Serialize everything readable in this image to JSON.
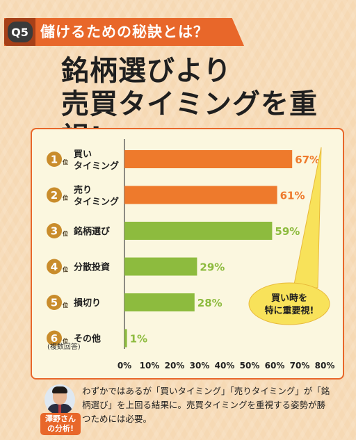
{
  "question": {
    "badge": "Q5",
    "text": "儲けるための秘訣とは？"
  },
  "headline": {
    "line1": "銘柄選びより",
    "line2": "売買タイミングを重視!"
  },
  "colors": {
    "accent": "#e8672a",
    "highlight_bar": "#ee7a2c",
    "normal_bar": "#8dbb3e",
    "rank_circle": "#c98c2b",
    "bubble": "#f8e25a"
  },
  "chart_data": {
    "type": "bar",
    "orientation": "horizontal",
    "rank_suffix": "位",
    "categories": [
      {
        "rank": "1",
        "label_lines": [
          "買い",
          "タイミング"
        ],
        "value": 67,
        "value_label": "67%",
        "highlight": true
      },
      {
        "rank": "2",
        "label_lines": [
          "売り",
          "タイミング"
        ],
        "value": 61,
        "value_label": "61%",
        "highlight": true
      },
      {
        "rank": "3",
        "label_lines": [
          "銘柄選び"
        ],
        "value": 59,
        "value_label": "59%",
        "highlight": false
      },
      {
        "rank": "4",
        "label_lines": [
          "分散投資"
        ],
        "value": 29,
        "value_label": "29%",
        "highlight": false
      },
      {
        "rank": "5",
        "label_lines": [
          "損切り"
        ],
        "value": 28,
        "value_label": "28%",
        "highlight": false
      },
      {
        "rank": "6",
        "label_lines": [
          "その他"
        ],
        "value": 1,
        "value_label": "1%",
        "highlight": false
      }
    ],
    "xlim": [
      0,
      80
    ],
    "x_ticks": [
      "0%",
      "10%",
      "20%",
      "30%",
      "40%",
      "50%",
      "60%",
      "70%",
      "80%"
    ],
    "note": "(複数回答)",
    "callout_lines": [
      "買い時を",
      "特に重要視!"
    ],
    "grid": false
  },
  "analyst": {
    "badge_lines": [
      "澤野さん",
      "の分析!"
    ],
    "text": "わずかではあるが「買いタイミング」「売りタイミング」が「銘柄選び」を上回る結果に。売買タイミングを重視する姿勢が勝つためには必要。"
  }
}
